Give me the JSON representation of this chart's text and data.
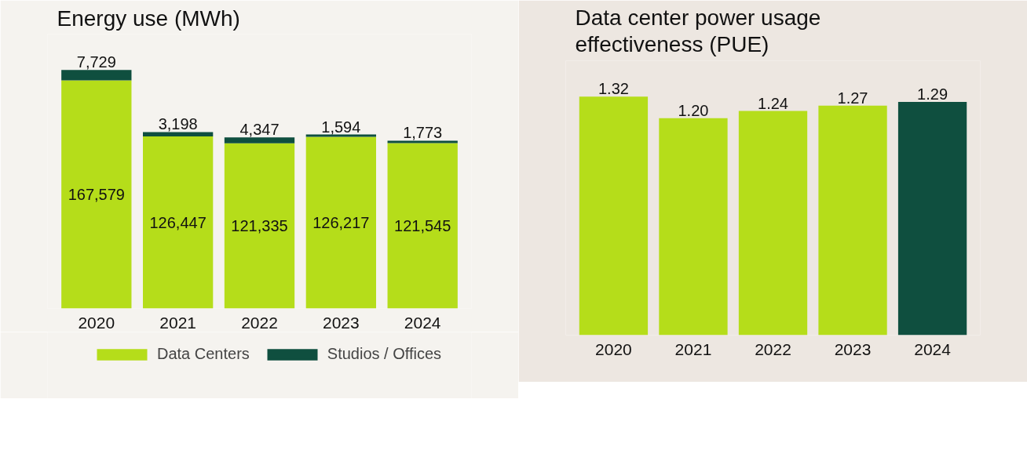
{
  "chart_data": [
    {
      "type": "bar",
      "title": "Energy use (MWh)",
      "categories": [
        "2020",
        "2021",
        "2022",
        "2023",
        "2024"
      ],
      "stacked": true,
      "legend": "bottom left",
      "series": [
        {
          "name": "Data Centers",
          "color": "#b5dd1a",
          "values": [
            167579,
            126447,
            121335,
            126217,
            121545
          ],
          "value_labels": [
            "167,579",
            "126,447",
            "121,335",
            "126,217",
            "121,545"
          ]
        },
        {
          "name": "Studios / Offices",
          "color": "#0f4f3f",
          "values": [
            7729,
            3198,
            4347,
            1594,
            1773
          ],
          "value_labels": [
            "7,729",
            "3,198",
            "4,347",
            "1,594",
            "1,773"
          ]
        }
      ]
    },
    {
      "type": "bar",
      "title": "Data center power usage effectiveness (PUE)",
      "categories": [
        "2020",
        "2021",
        "2022",
        "2023",
        "2024"
      ],
      "values": [
        1.32,
        1.2,
        1.24,
        1.27,
        1.29
      ],
      "value_labels": [
        "1.32",
        "1.20",
        "1.24",
        "1.27",
        "1.29"
      ],
      "colors": [
        "#b5dd1a",
        "#b5dd1a",
        "#b5dd1a",
        "#b5dd1a",
        "#0f4f3f"
      ]
    }
  ]
}
